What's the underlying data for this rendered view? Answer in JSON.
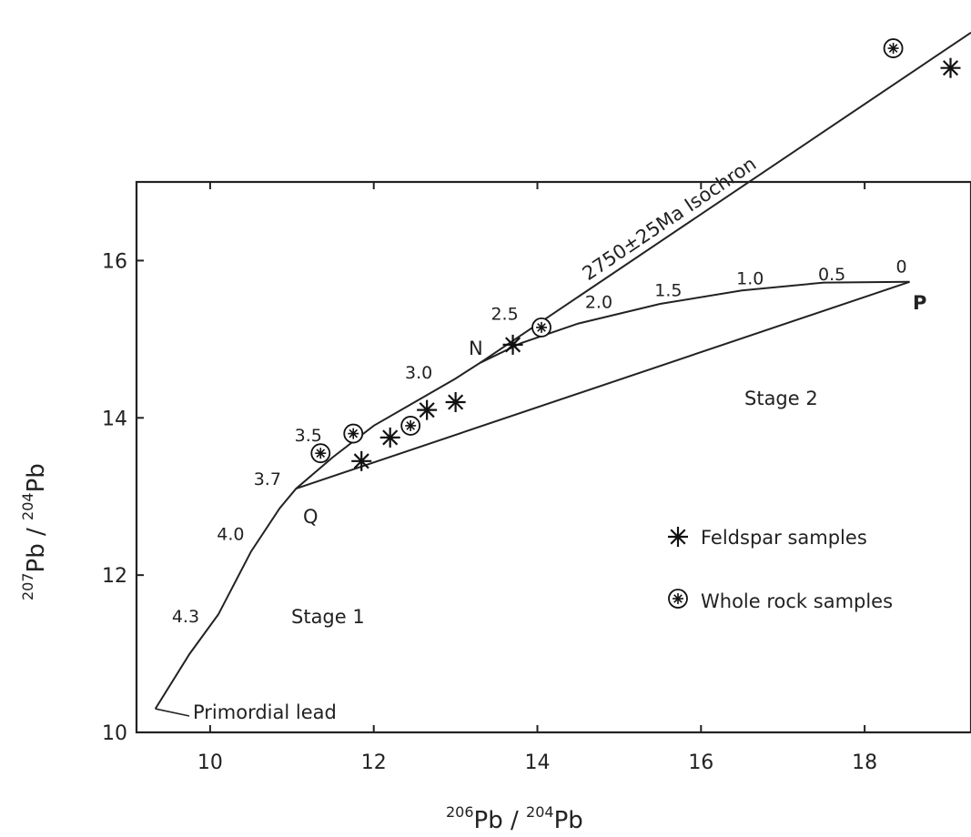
{
  "chart_data": {
    "type": "scatter",
    "xlabel": {
      "base": "Pb / ",
      "sup1": "206",
      "sup2": "204",
      "tail": "Pb"
    },
    "ylabel": {
      "sup1": "207",
      "base": "Pb / ",
      "sup2": "204",
      "tail": "Pb"
    },
    "xlim": [
      9.1,
      19.3
    ],
    "ylim": [
      10,
      17
    ],
    "x_ticks": [
      10,
      12,
      14,
      16,
      18
    ],
    "y_ticks": [
      10,
      12,
      14,
      16
    ],
    "growth_curve": [
      [
        9.33,
        10.3
      ],
      [
        9.75,
        11.0
      ],
      [
        10.1,
        11.5
      ],
      [
        10.5,
        12.3
      ],
      [
        10.85,
        12.85
      ],
      [
        11.05,
        13.1
      ],
      [
        11.5,
        13.5
      ],
      [
        12.0,
        13.9
      ],
      [
        12.5,
        14.2
      ],
      [
        13.0,
        14.5
      ],
      [
        13.3,
        14.7
      ],
      [
        13.8,
        14.95
      ],
      [
        14.5,
        15.2
      ],
      [
        15.5,
        15.45
      ],
      [
        16.5,
        15.62
      ],
      [
        17.5,
        15.72
      ],
      [
        18.55,
        15.73
      ]
    ],
    "age_labels": [
      {
        "label": "4.3",
        "x": 9.7,
        "y": 11.4
      },
      {
        "label": "4.0",
        "x": 10.25,
        "y": 12.45
      },
      {
        "label": "3.7",
        "x": 10.7,
        "y": 13.15
      },
      {
        "label": "3.5",
        "x": 11.2,
        "y": 13.7
      },
      {
        "label": "3.0",
        "x": 12.55,
        "y": 14.5
      },
      {
        "label": "2.5",
        "x": 13.6,
        "y": 15.25
      },
      {
        "label": "2.0",
        "x": 14.75,
        "y": 15.4
      },
      {
        "label": "1.5",
        "x": 15.6,
        "y": 15.55
      },
      {
        "label": "1.0",
        "x": 16.6,
        "y": 15.7
      },
      {
        "label": "0.5",
        "x": 17.6,
        "y": 15.75
      },
      {
        "label": "0",
        "x": 18.45,
        "y": 15.85
      }
    ],
    "isochron": {
      "label": "2750±25Ma Isochron",
      "from": [
        13.3,
        14.7
      ],
      "to": [
        19.3,
        18.9
      ]
    },
    "stage2_line": {
      "from": [
        11.05,
        13.1
      ],
      "to": [
        18.55,
        15.73
      ]
    },
    "points": {
      "Q": [
        11.05,
        13.1
      ],
      "N": [
        13.3,
        14.7
      ],
      "P": [
        18.55,
        15.73
      ]
    },
    "feldspar": [
      [
        11.85,
        13.45
      ],
      [
        12.2,
        13.75
      ],
      [
        12.65,
        14.1
      ],
      [
        13.0,
        14.2
      ],
      [
        13.7,
        14.93
      ],
      [
        19.05,
        18.45
      ]
    ],
    "whole_rock": [
      [
        11.35,
        13.55
      ],
      [
        11.75,
        13.8
      ],
      [
        12.45,
        13.9
      ],
      [
        14.05,
        15.15
      ],
      [
        18.35,
        18.7
      ]
    ],
    "annotations": {
      "stage1": "Stage 1",
      "stage2": "Stage 2",
      "primordial": "Primordial lead",
      "Q": "Q",
      "N": "N",
      "P": "P"
    },
    "legend": {
      "feldspar": "Feldspar samples",
      "whole_rock": "Whole rock samples"
    }
  }
}
